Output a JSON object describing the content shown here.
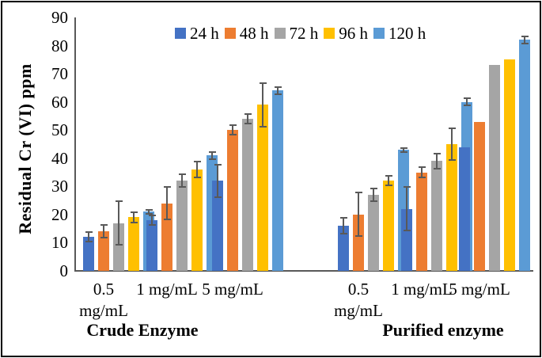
{
  "chart_data": {
    "type": "bar",
    "title": "",
    "ylabel": "Residual Cr (VI) ppm",
    "xlabel": "",
    "ylim": [
      0,
      90
    ],
    "yticks": [
      0,
      10,
      20,
      30,
      40,
      50,
      60,
      70,
      80,
      90
    ],
    "grid": "off",
    "legend_position": "top",
    "series": [
      "24 h",
      "48 h",
      "72 h",
      "96 h",
      "120 h"
    ],
    "series_colors": [
      "#4472C4",
      "#ED7D31",
      "#A5A5A5",
      "#FFC000",
      "#5B9BD5"
    ],
    "error_bar_color": "#595959",
    "axis_color": "#595959",
    "sections": [
      {
        "label": "Crude Enzyme",
        "groups": [
          {
            "category": "0.5 mg/mL",
            "category_lines": [
              "0.5",
              "mg/mL"
            ],
            "values": [
              12,
              14,
              17,
              19,
              21
            ],
            "errors": [
              2,
              2.5,
              8,
              2,
              1
            ]
          },
          {
            "category": "1 mg/mL",
            "category_lines": [
              "1 mg/mL"
            ],
            "values": [
              18,
              24,
              32,
              36,
              41
            ],
            "errors": [
              2,
              6,
              2.5,
              3,
              1.5
            ]
          },
          {
            "category": "5 mg/mL",
            "category_lines": [
              "5 mg/mL"
            ],
            "values": [
              32,
              50,
              54,
              59,
              64
            ],
            "errors": [
              6,
              2,
              2,
              8,
              1.5
            ]
          }
        ]
      },
      {
        "label": "Purified enzyme",
        "groups": [
          {
            "category": "0.5 mg/mL",
            "category_lines": [
              "0.5",
              "mg/mL"
            ],
            "values": [
              16,
              20,
              27,
              32,
              43
            ],
            "errors": [
              3,
              8,
              2.5,
              2,
              1
            ]
          },
          {
            "category": "1 mg/mL",
            "category_lines": [
              "1 mg/mL"
            ],
            "values": [
              22,
              35,
              39,
              45,
              60
            ],
            "errors": [
              8,
              2,
              3,
              6,
              1.5
            ]
          },
          {
            "category": "5 mg/mL",
            "category_lines": [
              "5 mg/mL"
            ],
            "values": [
              44,
              53,
              73,
              75,
              82
            ],
            "errors": [
              0,
              0,
              0,
              0,
              1.5
            ]
          }
        ]
      }
    ]
  }
}
